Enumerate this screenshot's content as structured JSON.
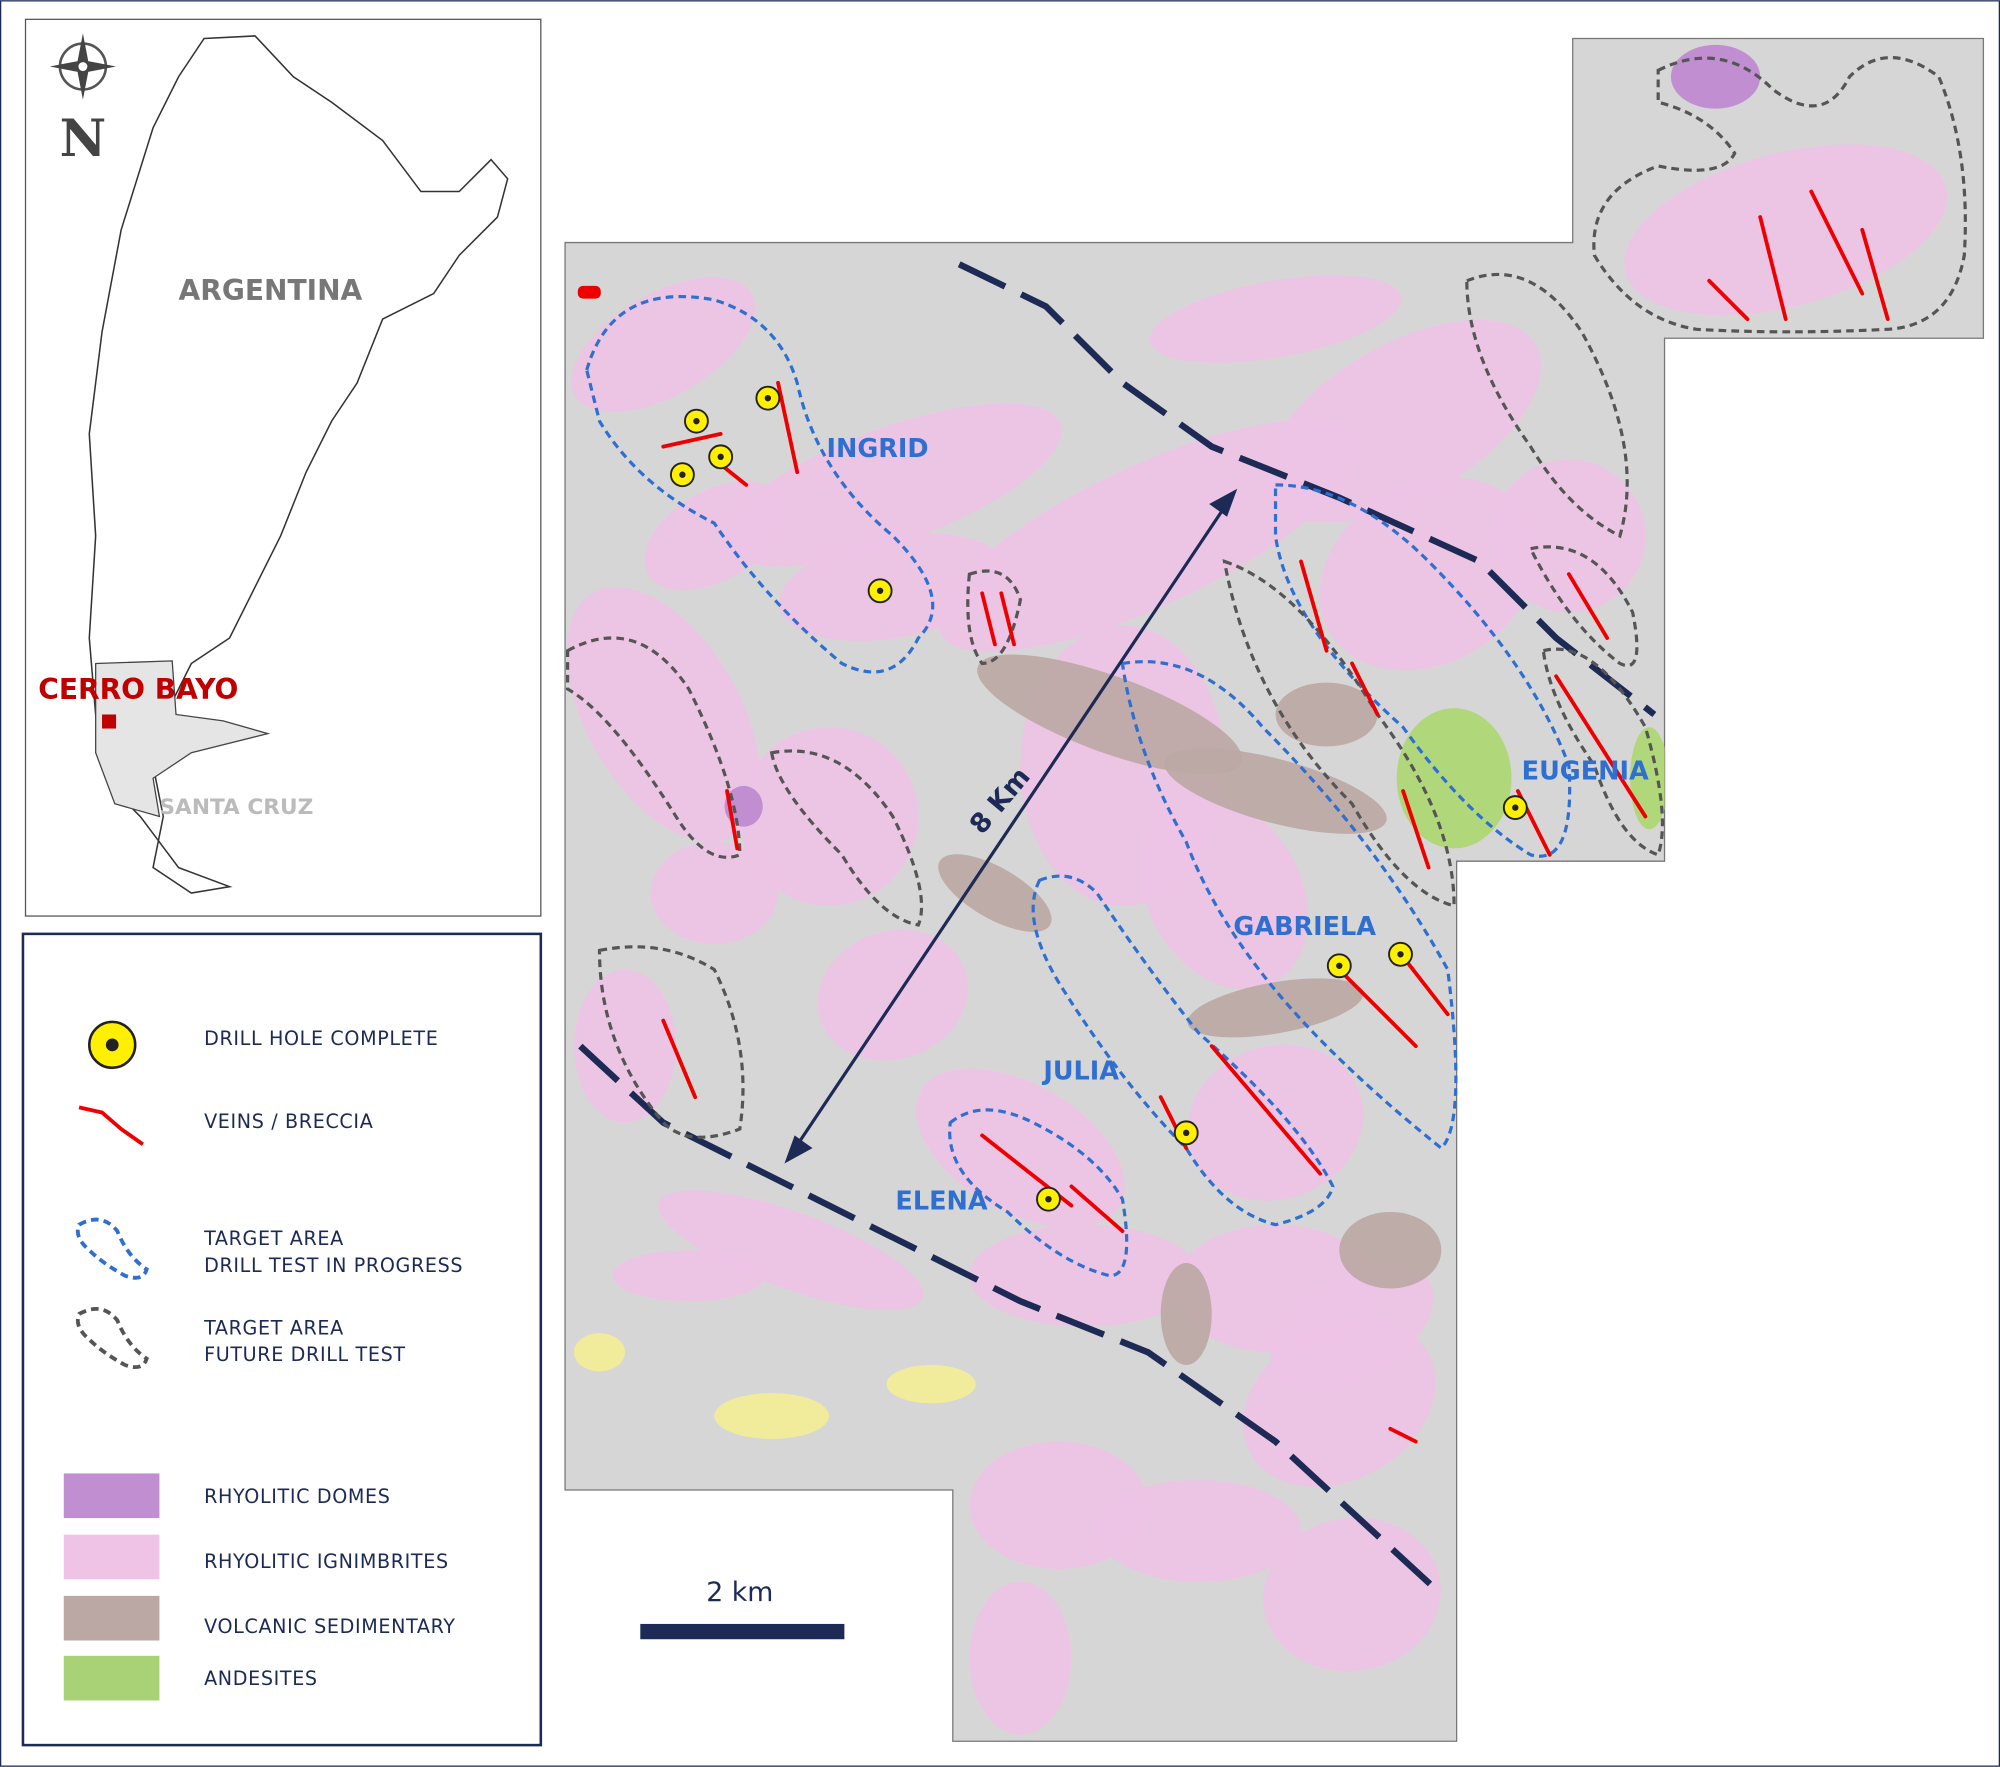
{
  "inset_map": {
    "north_label": "N",
    "country": "ARGENTINA",
    "project": "CERRO BAYO",
    "province": "SANTA CRUZ"
  },
  "legend": {
    "items": [
      {
        "lines": [
          "DRILL HOLE COMPLETE"
        ]
      },
      {
        "lines": [
          "VEINS / BRECCIA"
        ]
      },
      {
        "lines": [
          "TARGET AREA",
          "DRILL TEST IN PROGRESS"
        ]
      },
      {
        "lines": [
          "TARGET AREA",
          "FUTURE DRILL TEST"
        ]
      },
      {
        "lines": [
          "RHYOLITIC DOMES"
        ]
      },
      {
        "lines": [
          "RHYOLITIC IGNIMBRITES"
        ]
      },
      {
        "lines": [
          "VOLCANIC SEDIMENTARY"
        ]
      },
      {
        "lines": [
          "ANDESITES"
        ]
      }
    ]
  },
  "map": {
    "targets": [
      "INGRID",
      "EUGENIA",
      "GABRIELA",
      "JULIA",
      "ELENA"
    ],
    "distance_label": "8 Km",
    "scale_bar_label": "2 km"
  }
}
